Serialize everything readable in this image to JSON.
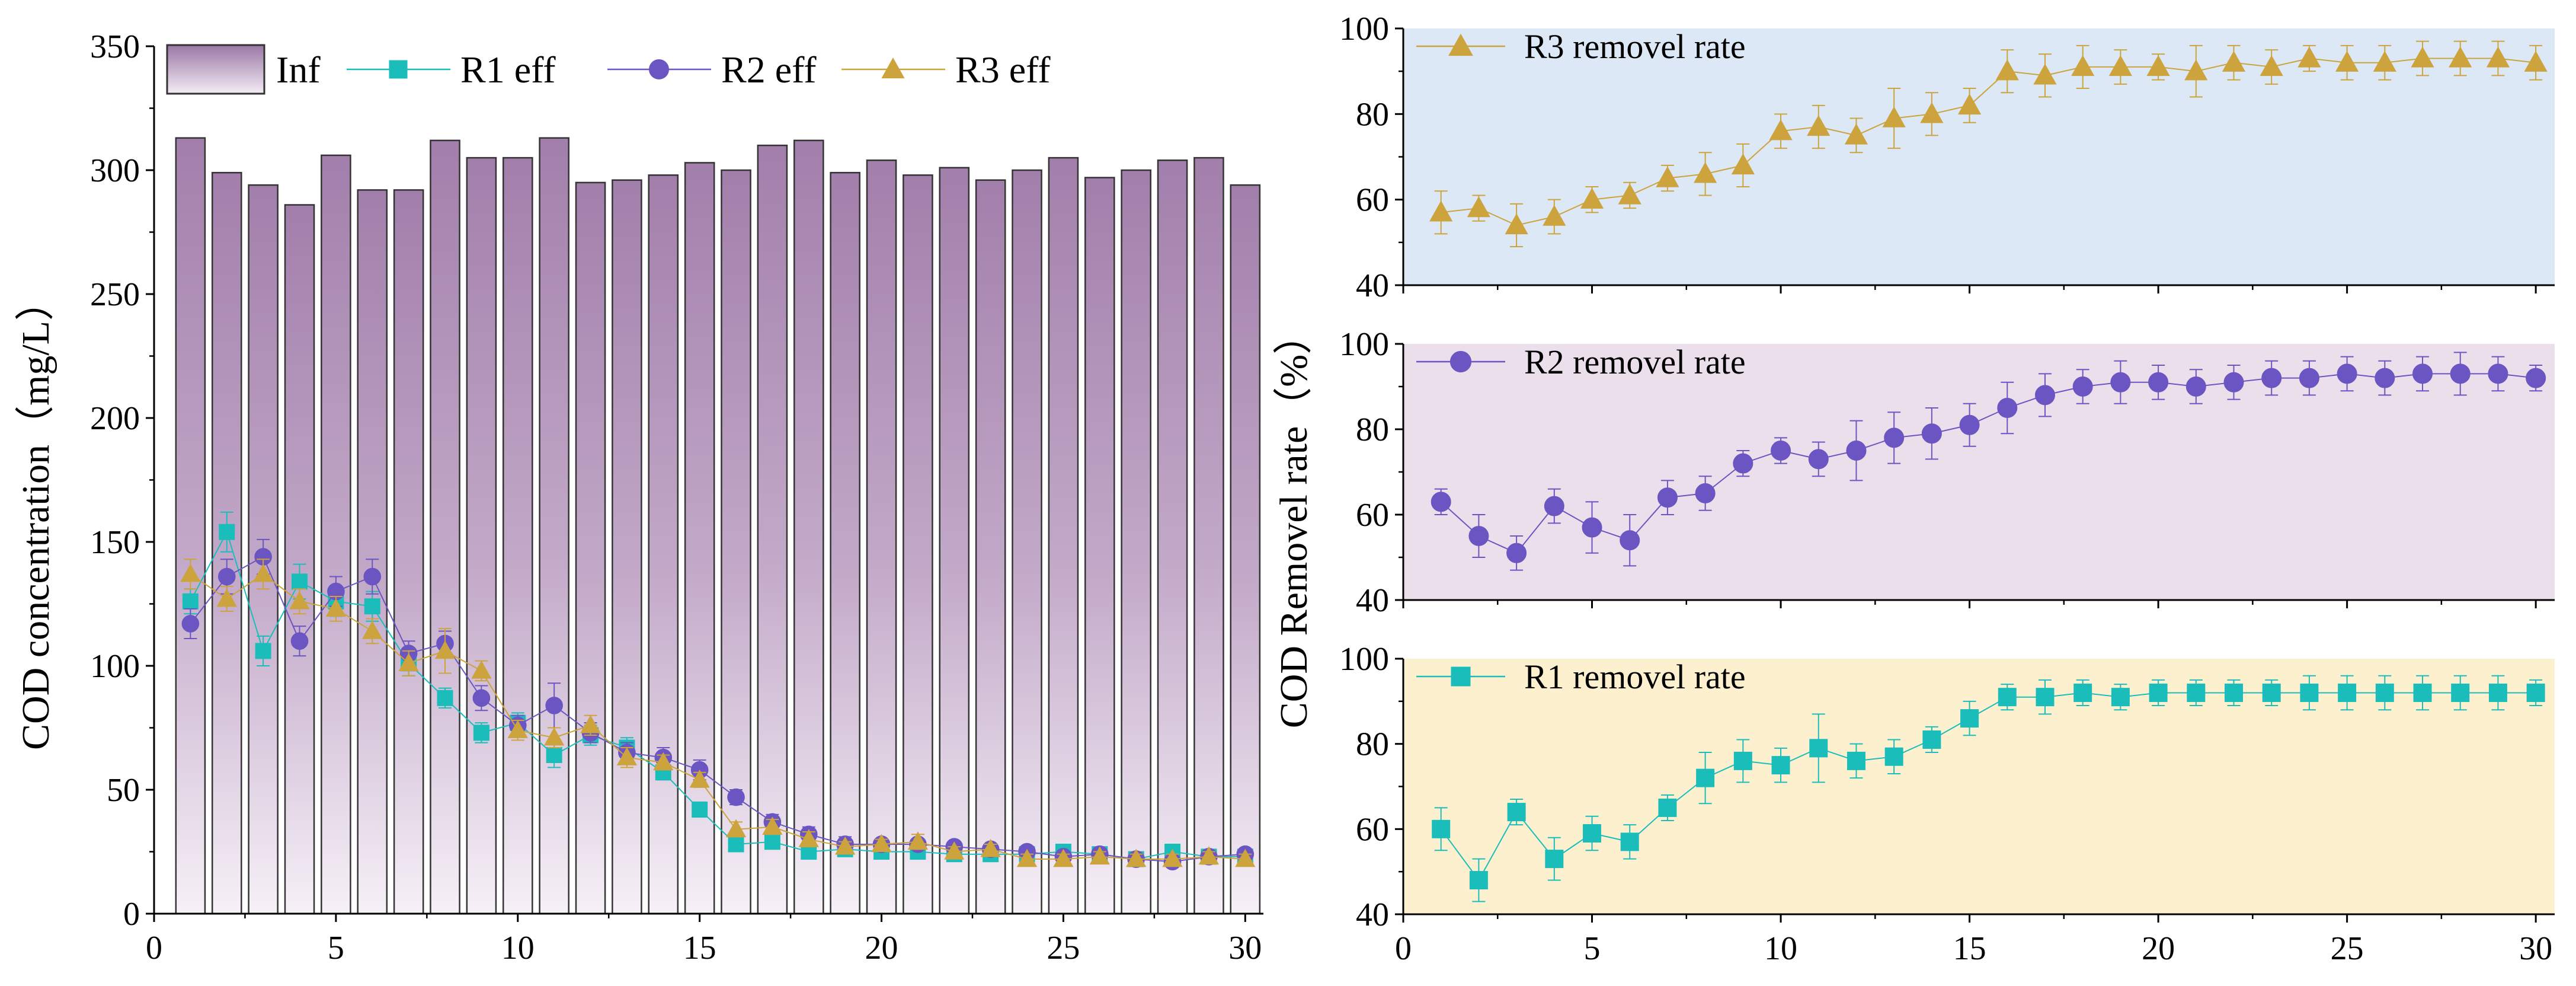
{
  "chart_data": [
    {
      "id": "concentration",
      "type": "bar+line",
      "title": "",
      "xlabel": "",
      "ylabel": "COD concentration（mg/L）",
      "xlim": [
        0,
        30.5
      ],
      "ylim": [
        0,
        350
      ],
      "xticks": [
        0,
        5,
        10,
        15,
        20,
        25,
        30
      ],
      "yticks": [
        0,
        50,
        100,
        150,
        200,
        250,
        300,
        350
      ],
      "x": [
        1,
        2,
        3,
        4,
        5,
        6,
        7,
        8,
        9,
        10,
        11,
        12,
        13,
        14,
        15,
        16,
        17,
        18,
        19,
        20,
        21,
        22,
        23,
        24,
        25,
        26,
        27,
        28,
        29,
        30
      ],
      "legend": {
        "placement": "top-left",
        "orientation": "horizontal"
      },
      "bars": {
        "name": "Inf",
        "values": [
          313,
          299,
          294,
          286,
          306,
          292,
          292,
          312,
          305,
          305,
          313,
          295,
          296,
          298,
          303,
          300,
          310,
          312,
          299,
          304,
          298,
          301,
          296,
          300,
          305,
          297,
          300,
          304,
          305,
          294
        ]
      },
      "series": [
        {
          "name": "R1 eff",
          "marker": "square",
          "color": "#1bbdbb",
          "values": [
            126,
            154,
            106,
            134,
            126,
            124,
            101,
            87,
            73,
            77,
            64,
            72,
            67,
            57,
            42,
            28,
            29,
            25,
            26,
            25,
            25,
            24,
            24,
            24,
            25,
            24,
            22,
            25,
            23,
            23
          ],
          "errors": [
            5,
            8,
            6,
            7,
            6,
            6,
            5,
            4,
            4,
            4,
            5,
            4,
            4,
            3,
            3,
            2,
            2,
            2,
            2,
            2,
            2,
            2,
            2,
            2,
            2,
            2,
            2,
            2,
            2,
            2
          ]
        },
        {
          "name": "R2 eff",
          "marker": "circle",
          "color": "#6a55c2",
          "values": [
            117,
            136,
            144,
            110,
            130,
            136,
            105,
            109,
            87,
            76,
            84,
            73,
            65,
            63,
            58,
            47,
            37,
            32,
            28,
            28,
            28,
            27,
            26,
            25,
            23,
            24,
            22,
            21,
            23,
            24
          ],
          "errors": [
            6,
            7,
            7,
            6,
            6,
            7,
            5,
            5,
            5,
            4,
            9,
            4,
            4,
            4,
            4,
            3,
            3,
            3,
            3,
            2,
            2,
            2,
            2,
            2,
            2,
            2,
            2,
            2,
            2,
            2
          ]
        },
        {
          "name": "R3 eff",
          "marker": "triangle",
          "color": "#cca33c",
          "values": [
            137,
            127,
            137,
            126,
            123,
            114,
            101,
            106,
            98,
            74,
            71,
            76,
            63,
            61,
            54,
            34,
            35,
            30,
            27,
            28,
            29,
            25,
            26,
            22,
            22,
            23,
            22,
            22,
            23,
            22
          ],
          "errors": [
            6,
            5,
            6,
            5,
            5,
            5,
            5,
            9,
            4,
            4,
            4,
            4,
            4,
            3,
            3,
            3,
            3,
            3,
            2,
            2,
            3,
            2,
            2,
            2,
            2,
            2,
            2,
            2,
            2,
            2
          ]
        }
      ]
    },
    {
      "id": "r3-removal",
      "type": "line",
      "title": "",
      "xlim": [
        0,
        30.5
      ],
      "ylim": [
        40,
        100
      ],
      "yticks": [
        40,
        60,
        80,
        100
      ],
      "background": "#dce8f5",
      "series": [
        {
          "name": "R3 removel rate",
          "marker": "triangle",
          "color": "#cca33c",
          "x": [
            1,
            2,
            3,
            4,
            5,
            6,
            7,
            8,
            9,
            10,
            11,
            12,
            13,
            14,
            15,
            16,
            17,
            18,
            19,
            20,
            21,
            22,
            23,
            24,
            25,
            26,
            27,
            28,
            29,
            30
          ],
          "values": [
            57,
            58,
            54,
            56,
            60,
            61,
            65,
            66,
            68,
            76,
            77,
            75,
            79,
            80,
            82,
            90,
            89,
            91,
            91,
            91,
            90,
            92,
            91,
            93,
            92,
            92,
            93,
            93,
            93,
            92
          ],
          "errors": [
            5,
            3,
            5,
            4,
            3,
            3,
            3,
            5,
            5,
            4,
            5,
            4,
            7,
            5,
            4,
            5,
            5,
            5,
            4,
            3,
            6,
            4,
            4,
            3,
            4,
            4,
            4,
            4,
            4,
            4
          ]
        }
      ],
      "legend": {
        "placement": "top-left"
      }
    },
    {
      "id": "r2-removal",
      "type": "line",
      "title": "",
      "xlim": [
        0,
        30.5
      ],
      "ylim": [
        40,
        100
      ],
      "yticks": [
        40,
        60,
        80,
        100
      ],
      "background": "#ebdfeb",
      "series": [
        {
          "name": "R2 removel rate",
          "marker": "circle",
          "color": "#6a55c2",
          "x": [
            1,
            2,
            3,
            4,
            5,
            6,
            7,
            8,
            9,
            10,
            11,
            12,
            13,
            14,
            15,
            16,
            17,
            18,
            19,
            20,
            21,
            22,
            23,
            24,
            25,
            26,
            27,
            28,
            29,
            30
          ],
          "values": [
            63,
            55,
            51,
            62,
            57,
            54,
            64,
            65,
            72,
            75,
            73,
            75,
            78,
            79,
            81,
            85,
            88,
            90,
            91,
            91,
            90,
            91,
            92,
            92,
            93,
            92,
            93,
            93,
            93,
            92
          ],
          "errors": [
            3,
            5,
            4,
            4,
            6,
            6,
            4,
            4,
            3,
            3,
            4,
            7,
            6,
            6,
            5,
            6,
            5,
            4,
            5,
            4,
            4,
            4,
            4,
            4,
            4,
            4,
            4,
            5,
            4,
            3
          ]
        }
      ],
      "legend": {
        "placement": "top-left"
      }
    },
    {
      "id": "r1-removal",
      "type": "line",
      "title": "",
      "xlabel": "",
      "ylabel": "COD Removel rate（%）",
      "xlim": [
        0,
        30.5
      ],
      "ylim": [
        40,
        100
      ],
      "xticks": [
        0,
        5,
        10,
        15,
        20,
        25,
        30
      ],
      "yticks": [
        40,
        60,
        80,
        100
      ],
      "background": "#fcf0cf",
      "series": [
        {
          "name": "R1 removel rate",
          "marker": "square",
          "color": "#1bbdbb",
          "x": [
            1,
            2,
            3,
            4,
            5,
            6,
            7,
            8,
            9,
            10,
            11,
            12,
            13,
            14,
            15,
            16,
            17,
            18,
            19,
            20,
            21,
            22,
            23,
            24,
            25,
            26,
            27,
            28,
            29,
            30
          ],
          "values": [
            60,
            48,
            64,
            53,
            59,
            57,
            65,
            72,
            76,
            75,
            79,
            76,
            77,
            81,
            86,
            91,
            91,
            92,
            91,
            92,
            92,
            92,
            92,
            92,
            92,
            92,
            92,
            92,
            92,
            92
          ],
          "errors": [
            5,
            5,
            3,
            5,
            4,
            4,
            3,
            6,
            5,
            4,
            8,
            4,
            4,
            3,
            4,
            3,
            4,
            3,
            3,
            3,
            3,
            3,
            3,
            4,
            4,
            4,
            4,
            4,
            4,
            3
          ]
        }
      ],
      "legend": {
        "placement": "top-left"
      }
    }
  ]
}
